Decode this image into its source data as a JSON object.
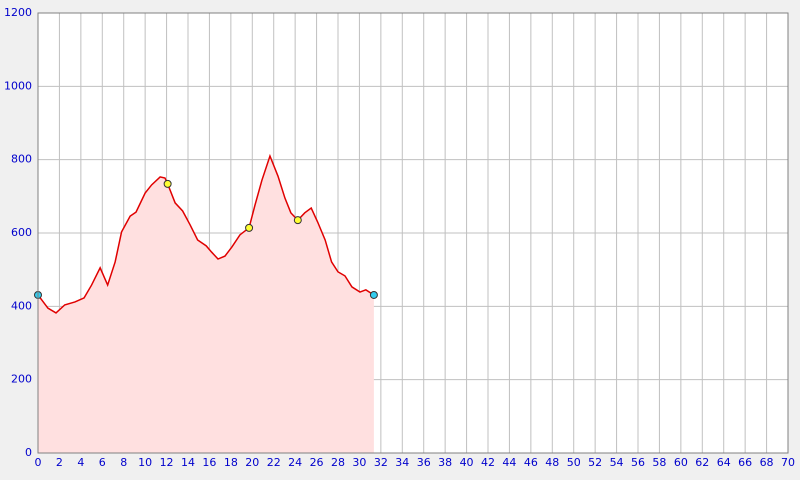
{
  "chart_data": {
    "type": "area",
    "x": [
      0,
      0.93,
      1.68,
      2.5,
      3.45,
      4.3,
      5.0,
      5.8,
      6.5,
      7.2,
      7.8,
      8.6,
      9.15,
      10.0,
      10.6,
      11.4,
      11.85,
      12.1,
      12.8,
      13.5,
      14.2,
      14.9,
      15.7,
      16.2,
      16.8,
      17.45,
      18.1,
      18.85,
      19.7,
      20.25,
      20.9,
      21.65,
      22.4,
      23.05,
      23.6,
      24.25,
      24.9,
      25.5,
      26.1,
      26.8,
      27.4,
      28.0,
      28.65,
      29.3,
      30.05,
      30.6,
      31.35
    ],
    "y": [
      431,
      395,
      382,
      404,
      412,
      423,
      458,
      505,
      458,
      521,
      603,
      646,
      657,
      709,
      731,
      753,
      750,
      734,
      682,
      660,
      622,
      581,
      565,
      548,
      529,
      537,
      562,
      595,
      614,
      676,
      744,
      810,
      755,
      695,
      655,
      635,
      655,
      668,
      630,
      581,
      521,
      494,
      483,
      453,
      439,
      445,
      431
    ],
    "line_color": "#e00000",
    "fill_color": "#ffe0e0",
    "points": [
      {
        "x": 0,
        "y": 431,
        "color": "#33ccee"
      },
      {
        "x": 12.1,
        "y": 734,
        "color": "#ffff33"
      },
      {
        "x": 19.7,
        "y": 614,
        "color": "#ffff33"
      },
      {
        "x": 24.25,
        "y": 635,
        "color": "#ffff33"
      },
      {
        "x": 31.35,
        "y": 431,
        "color": "#33ccee"
      }
    ],
    "xlim": [
      0,
      70
    ],
    "ylim": [
      0,
      1200
    ],
    "xticks": [
      0,
      2,
      4,
      6,
      8,
      10,
      12,
      14,
      16,
      18,
      20,
      22,
      24,
      26,
      28,
      30,
      32,
      34,
      36,
      38,
      40,
      42,
      44,
      46,
      48,
      50,
      52,
      54,
      56,
      58,
      60,
      62,
      64,
      66,
      68,
      70
    ],
    "yticks": [
      0,
      200,
      400,
      600,
      800,
      1000,
      1200
    ],
    "grid": true
  }
}
